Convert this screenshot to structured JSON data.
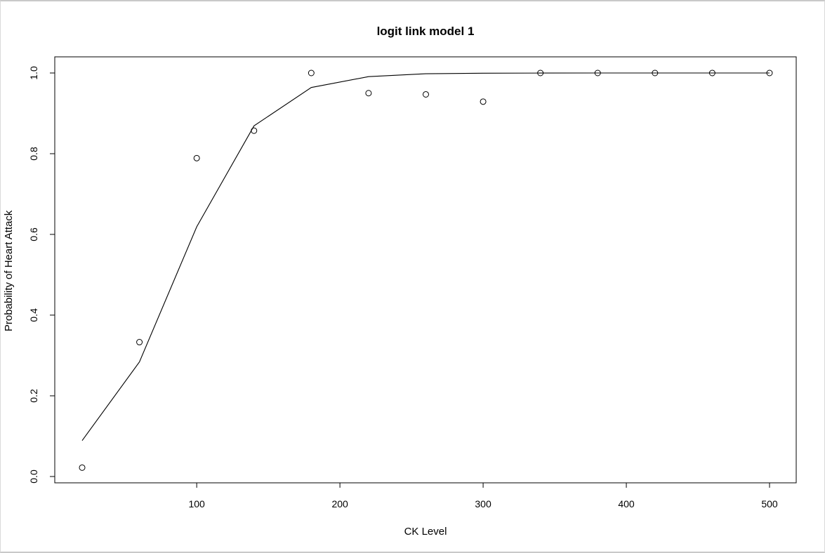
{
  "chart_data": {
    "type": "scatter",
    "title": "logit link model 1",
    "xlabel": "CK Level",
    "ylabel": "Probability of Heart Attack",
    "xlim": [
      20,
      500
    ],
    "ylim": [
      0,
      1
    ],
    "x_ticks": [
      100,
      200,
      300,
      400,
      500
    ],
    "y_ticks": [
      0.0,
      0.2,
      0.4,
      0.6,
      0.8,
      1.0
    ],
    "x_tick_labels": [
      "100",
      "200",
      "300",
      "400",
      "500"
    ],
    "y_tick_labels": [
      "0.0",
      "0.2",
      "0.4",
      "0.6",
      "0.8",
      "1.0"
    ],
    "grid": false,
    "series": [
      {
        "style": "points",
        "x": [
          20,
          60,
          100,
          140,
          180,
          220,
          260,
          300,
          340,
          380,
          420,
          460,
          500
        ],
        "y": [
          0.022,
          0.333,
          0.789,
          0.857,
          1.0,
          0.95,
          0.947,
          0.929,
          1.0,
          1.0,
          1.0,
          1.0,
          1.0
        ]
      },
      {
        "style": "line",
        "x": [
          20,
          60,
          100,
          140,
          180,
          220,
          260,
          300,
          340,
          380,
          420,
          460,
          500
        ],
        "y": [
          0.089,
          0.284,
          0.619,
          0.869,
          0.964,
          0.991,
          0.998,
          0.9994,
          0.9998,
          1.0,
          1.0,
          1.0,
          1.0
        ]
      }
    ]
  }
}
